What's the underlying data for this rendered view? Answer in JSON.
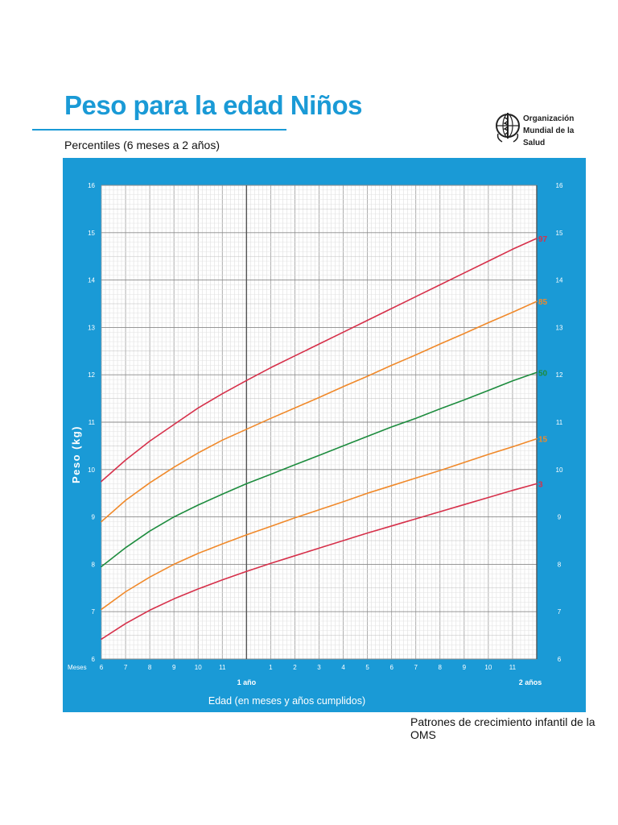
{
  "header": {
    "title": "Peso para la edad Niños",
    "subtitle": "Percentiles (6 meses a 2 años)"
  },
  "logo": {
    "line1": "Organización",
    "line2": "Mundial de la Salud"
  },
  "footer": "Patrones de crecimiento infantil de la OMS",
  "colors": {
    "frame": "#1a9ad6",
    "p97": "#d6304a",
    "p85": "#f0892a",
    "p50": "#1d8c3e",
    "p15": "#f0892a",
    "p3": "#d6304a"
  },
  "chart_data": {
    "type": "line",
    "ylabel": "Peso (kg)",
    "xlabel": "Edad (en meses y años cumplidos)",
    "x_axis_prefix": "Meses",
    "ylim": [
      6,
      16
    ],
    "xlim": [
      6,
      24
    ],
    "y_ticks": [
      "6",
      "7",
      "8",
      "9",
      "10",
      "11",
      "12",
      "13",
      "14",
      "15",
      "16"
    ],
    "x_ticks": [
      "6",
      "7",
      "8",
      "9",
      "10",
      "11",
      "",
      "1",
      "2",
      "3",
      "4",
      "5",
      "6",
      "7",
      "8",
      "9",
      "10",
      "11",
      ""
    ],
    "year_labels": [
      {
        "month": 12,
        "label": "1 año"
      },
      {
        "month": 24,
        "label": "2 años"
      }
    ],
    "grid": true,
    "x": [
      6,
      7,
      8,
      9,
      10,
      11,
      12,
      13,
      14,
      15,
      16,
      17,
      18,
      19,
      20,
      21,
      22,
      23,
      24
    ],
    "series": [
      {
        "name": "97",
        "color_key": "p97",
        "values": [
          9.75,
          10.2,
          10.6,
          10.95,
          11.3,
          11.6,
          11.88,
          12.15,
          12.4,
          12.65,
          12.9,
          13.15,
          13.4,
          13.65,
          13.9,
          14.15,
          14.4,
          14.65,
          14.88
        ]
      },
      {
        "name": "85",
        "color_key": "p85",
        "values": [
          8.9,
          9.35,
          9.72,
          10.05,
          10.35,
          10.62,
          10.85,
          11.08,
          11.3,
          11.52,
          11.75,
          11.97,
          12.2,
          12.42,
          12.65,
          12.87,
          13.1,
          13.32,
          13.55
        ]
      },
      {
        "name": "50",
        "color_key": "p50",
        "values": [
          7.95,
          8.35,
          8.7,
          9.0,
          9.25,
          9.48,
          9.7,
          9.9,
          10.1,
          10.3,
          10.5,
          10.7,
          10.9,
          11.08,
          11.28,
          11.47,
          11.67,
          11.87,
          12.05
        ]
      },
      {
        "name": "15",
        "color_key": "p15",
        "values": [
          7.05,
          7.42,
          7.73,
          8.0,
          8.23,
          8.43,
          8.62,
          8.8,
          8.98,
          9.15,
          9.32,
          9.5,
          9.66,
          9.82,
          9.98,
          10.15,
          10.32,
          10.48,
          10.65
        ]
      },
      {
        "name": "3",
        "color_key": "p3",
        "values": [
          6.42,
          6.75,
          7.03,
          7.27,
          7.48,
          7.67,
          7.85,
          8.02,
          8.18,
          8.34,
          8.5,
          8.66,
          8.81,
          8.96,
          9.11,
          9.26,
          9.41,
          9.56,
          9.7
        ]
      }
    ]
  }
}
